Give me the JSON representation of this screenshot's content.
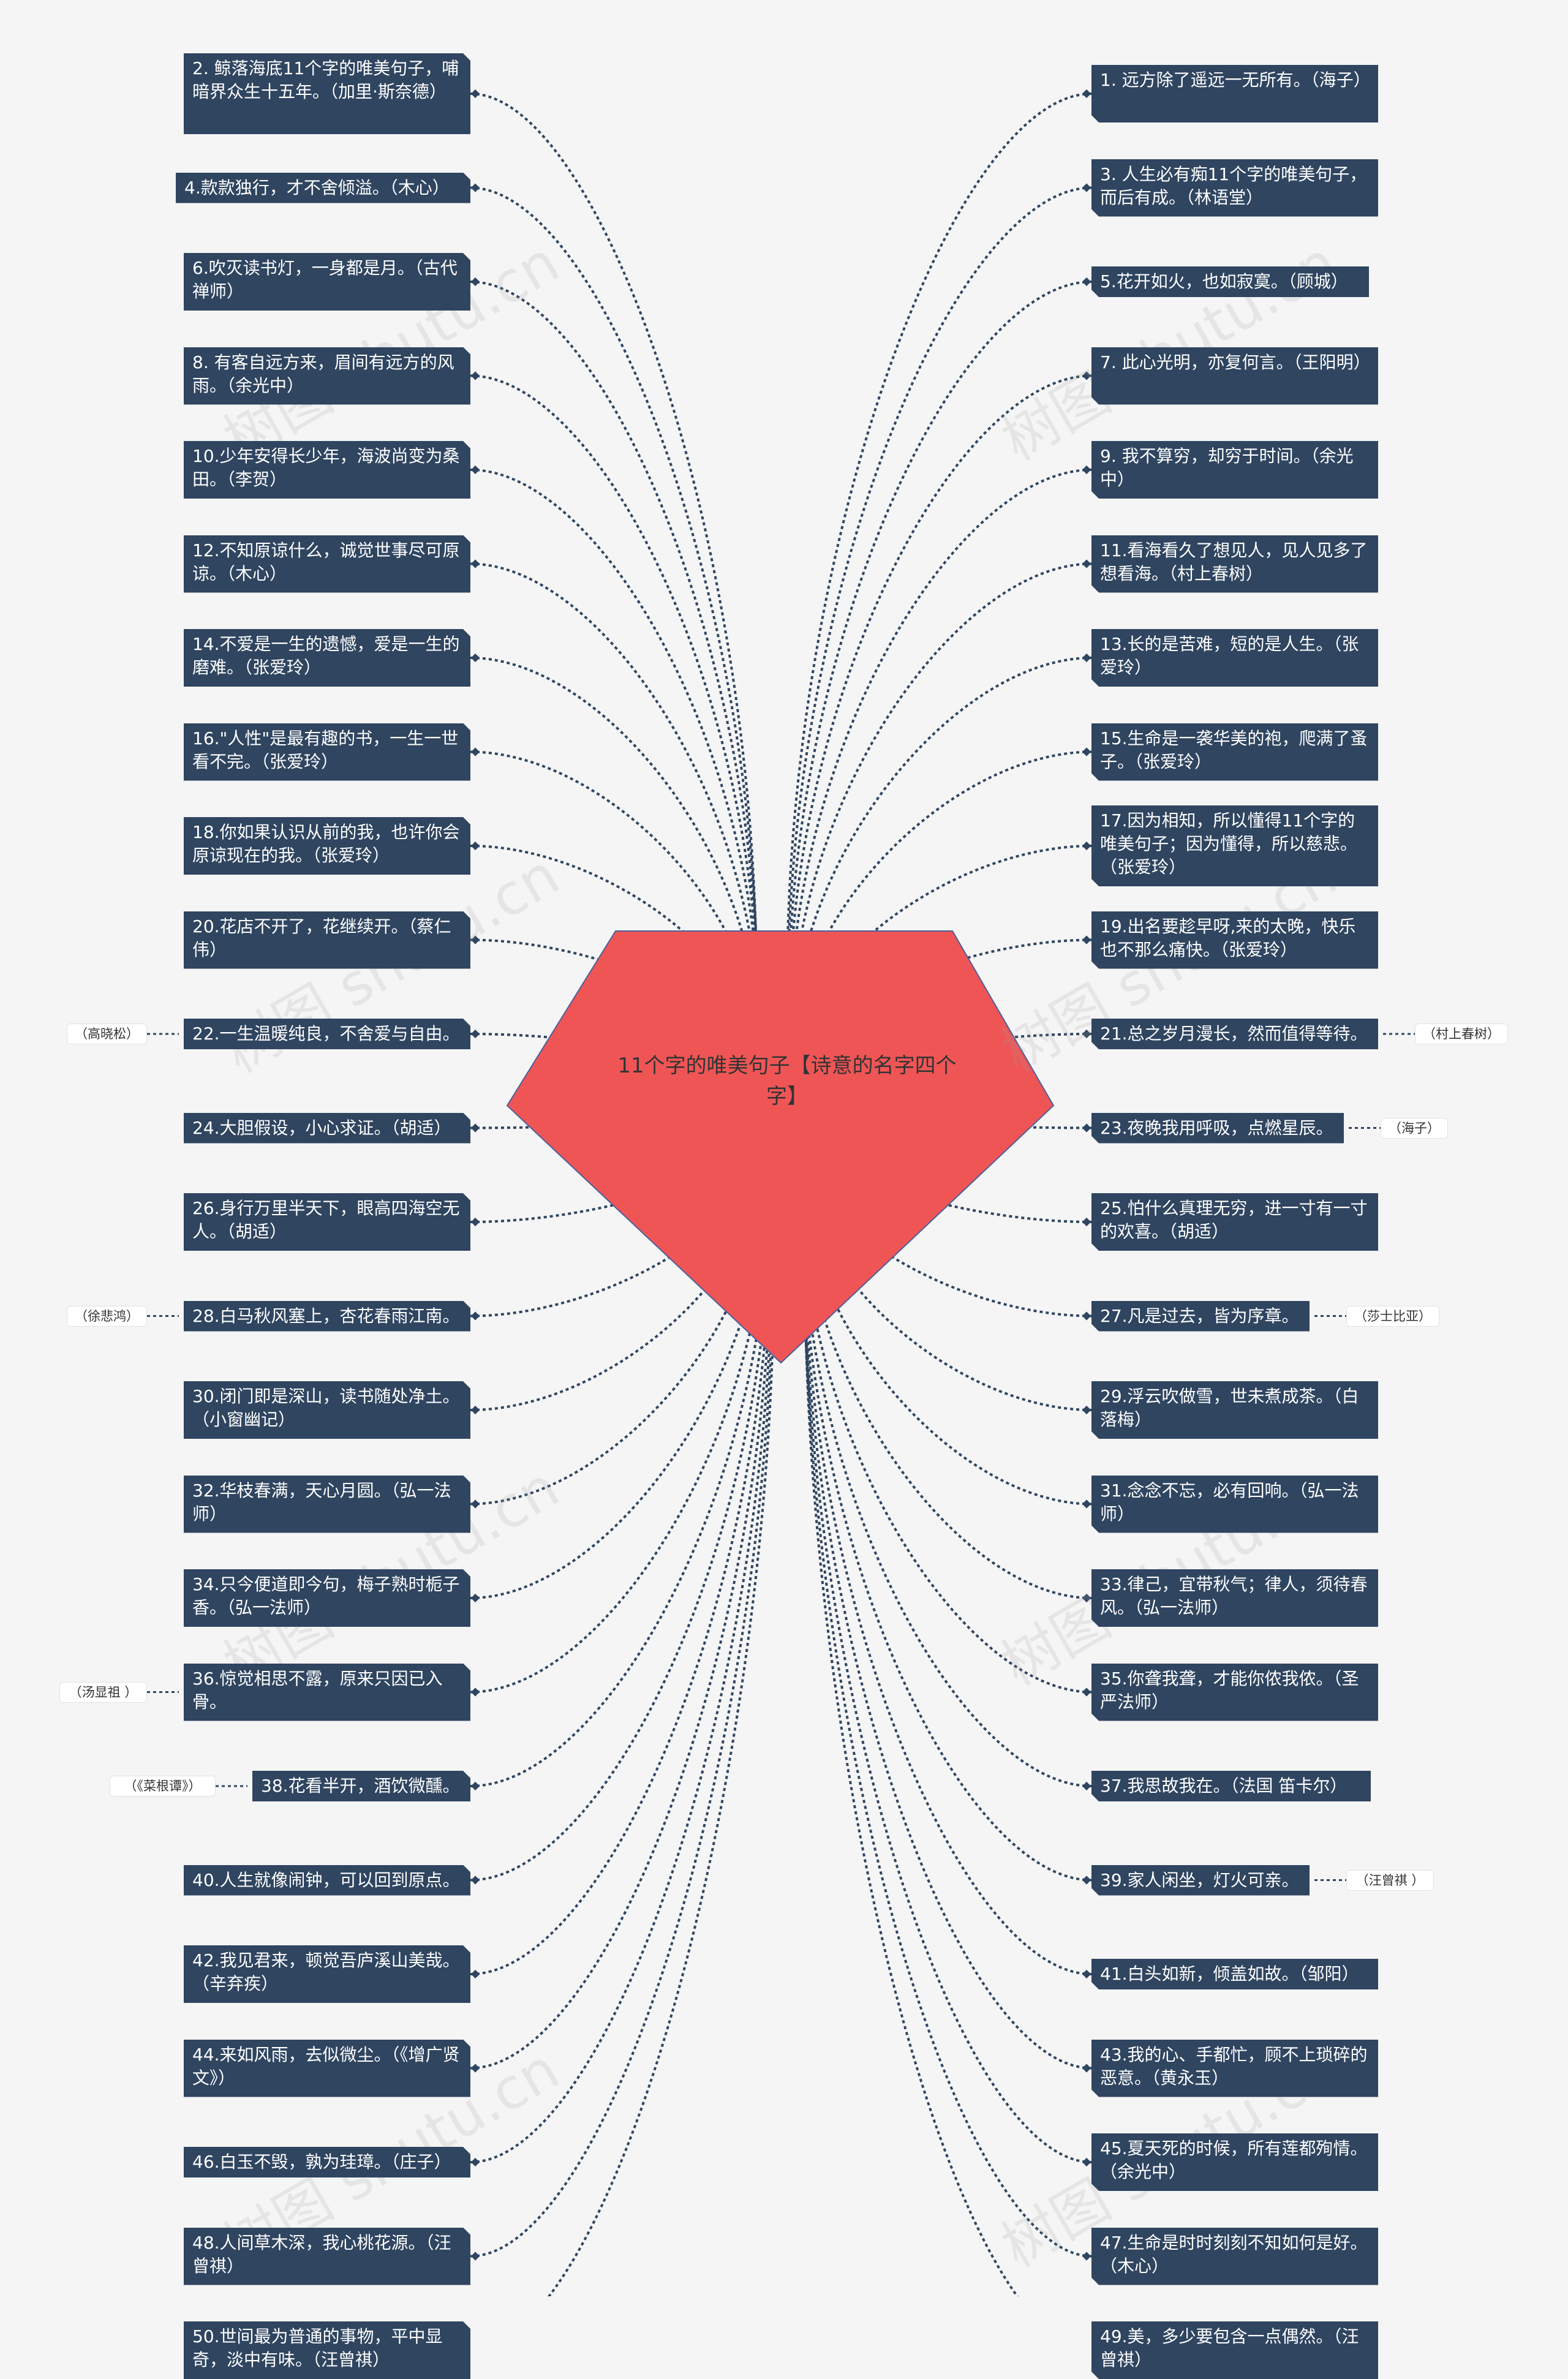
{
  "root": {
    "label": "11个字的唯美句子【诗意的名字四个字】"
  },
  "colors": {
    "root_fill": "#f05556",
    "node_fill": "#2f4560",
    "edge": "#2f4560",
    "background": "#f5f5f5"
  },
  "watermark": "树图 shutu.cn",
  "left": [
    {
      "text": "2. 鲸落海底11个字的唯美句子，哺暗界众生十五年。（加里·斯奈德）"
    },
    {
      "text": "4.款款独行，才不舍倾溢。（木心）"
    },
    {
      "text": "6.吹灭读书灯，一身都是月。（古代禅师）"
    },
    {
      "text": "8. 有客自远方来，眉间有远方的风雨。（余光中）"
    },
    {
      "text": "10.少年安得长少年，海波尚变为桑田。（李贺）"
    },
    {
      "text": "12.不知原谅什么，诚觉世事尽可原谅。（木心）"
    },
    {
      "text": "14.不爱是一生的遗憾，爱是一生的磨难。（张爱玲）"
    },
    {
      "text": "16.\"人性\"是最有趣的书，一生一世看不完。（张爱玲）"
    },
    {
      "text": "18.你如果认识从前的我，也许你会原谅现在的我。（张爱玲）"
    },
    {
      "text": "20.花店不开了，花继续开。（蔡仁伟）"
    },
    {
      "text": "22.一生温暖纯良，不舍爱与自由。",
      "tag": "（高晓松）"
    },
    {
      "text": "24.大胆假设，小心求证。（胡适）"
    },
    {
      "text": "26.身行万里半天下，眼高四海空无人。（胡适）"
    },
    {
      "text": "28.白马秋风塞上，杏花春雨江南。",
      "tag": "（徐悲鸿）"
    },
    {
      "text": "30.闭门即是深山，读书随处净土。（小窗幽记）"
    },
    {
      "text": "32.华枝春满，天心月圆。（弘一法师）"
    },
    {
      "text": "34.只今便道即今句，梅子熟时栀子香。（弘一法师）"
    },
    {
      "text": "36.惊觉相思不露，原来只因已入骨。",
      "tag": "（汤显祖 ）"
    },
    {
      "text": "38.花看半开，酒饮微醺。",
      "tag": "（《菜根谭》）"
    },
    {
      "text": "40.人生就像闹钟，可以回到原点。"
    },
    {
      "text": "42.我见君来，顿觉吾庐溪山美哉。（辛弃疾）"
    },
    {
      "text": "44.来如风雨，去似微尘。（《增广贤文》）"
    },
    {
      "text": "46.白玉不毁，孰为珪璋。（庄子）"
    },
    {
      "text": "48.人间草木深，我心桃花源。（汪曾祺）"
    },
    {
      "text": "50.世间最为普通的事物，平中显奇，淡中有味。（汪曾祺）"
    }
  ],
  "right": [
    {
      "text": "1. 远方除了遥远一无所有。（海子）"
    },
    {
      "text": "3. 人生必有痴11个字的唯美句子，而后有成。（林语堂）"
    },
    {
      "text": "5.花开如火，也如寂寞。（顾城）"
    },
    {
      "text": "7. 此心光明，亦复何言。（王阳明）"
    },
    {
      "text": "9. 我不算穷，却穷于时间。（余光中）"
    },
    {
      "text": "11.看海看久了想见人，见人见多了想看海。（村上春树）"
    },
    {
      "text": "13.长的是苦难，短的是人生。（张爱玲）"
    },
    {
      "text": "15.生命是一袭华美的袍，爬满了蚤子。（张爱玲）"
    },
    {
      "text": "17.因为相知，所以懂得11个字的唯美句子；因为懂得，所以慈悲。（张爱玲）"
    },
    {
      "text": "19.出名要趁早呀,来的太晚，快乐也不那么痛快。（张爱玲）"
    },
    {
      "text": "21.总之岁月漫长，然而值得等待。",
      "tag": "（村上春树）"
    },
    {
      "text": "23.夜晚我用呼吸，点燃星辰。",
      "tag": "（海子）"
    },
    {
      "text": "25.怕什么真理无穷，进一寸有一寸的欢喜。（胡适）"
    },
    {
      "text": "27.凡是过去，皆为序章。",
      "tag": "（莎士比亚）"
    },
    {
      "text": "29.浮云吹做雪，世未煮成茶。（白落梅）"
    },
    {
      "text": "31.念念不忘，必有回响。（弘一法师）"
    },
    {
      "text": "33.律己，宜带秋气；律人，须待春风。（弘一法师）"
    },
    {
      "text": "35.你聋我聋，才能你侬我侬。（圣严法师）"
    },
    {
      "text": "37.我思故我在。（法国 笛卡尔）"
    },
    {
      "text": "39.家人闲坐，灯火可亲。",
      "tag": "（汪曾祺 ）"
    },
    {
      "text": "41.白头如新，倾盖如故。（邹阳）"
    },
    {
      "text": "43.我的心、手都忙，顾不上琐碎的恶意。（黄永玉）"
    },
    {
      "text": "45.夏天死的时候，所有莲都殉情。（余光中）"
    },
    {
      "text": "47.生命是时时刻刻不知如何是好。（木心）"
    },
    {
      "text": "49.美，多少要包含一点偶然。（汪曾祺）"
    }
  ]
}
